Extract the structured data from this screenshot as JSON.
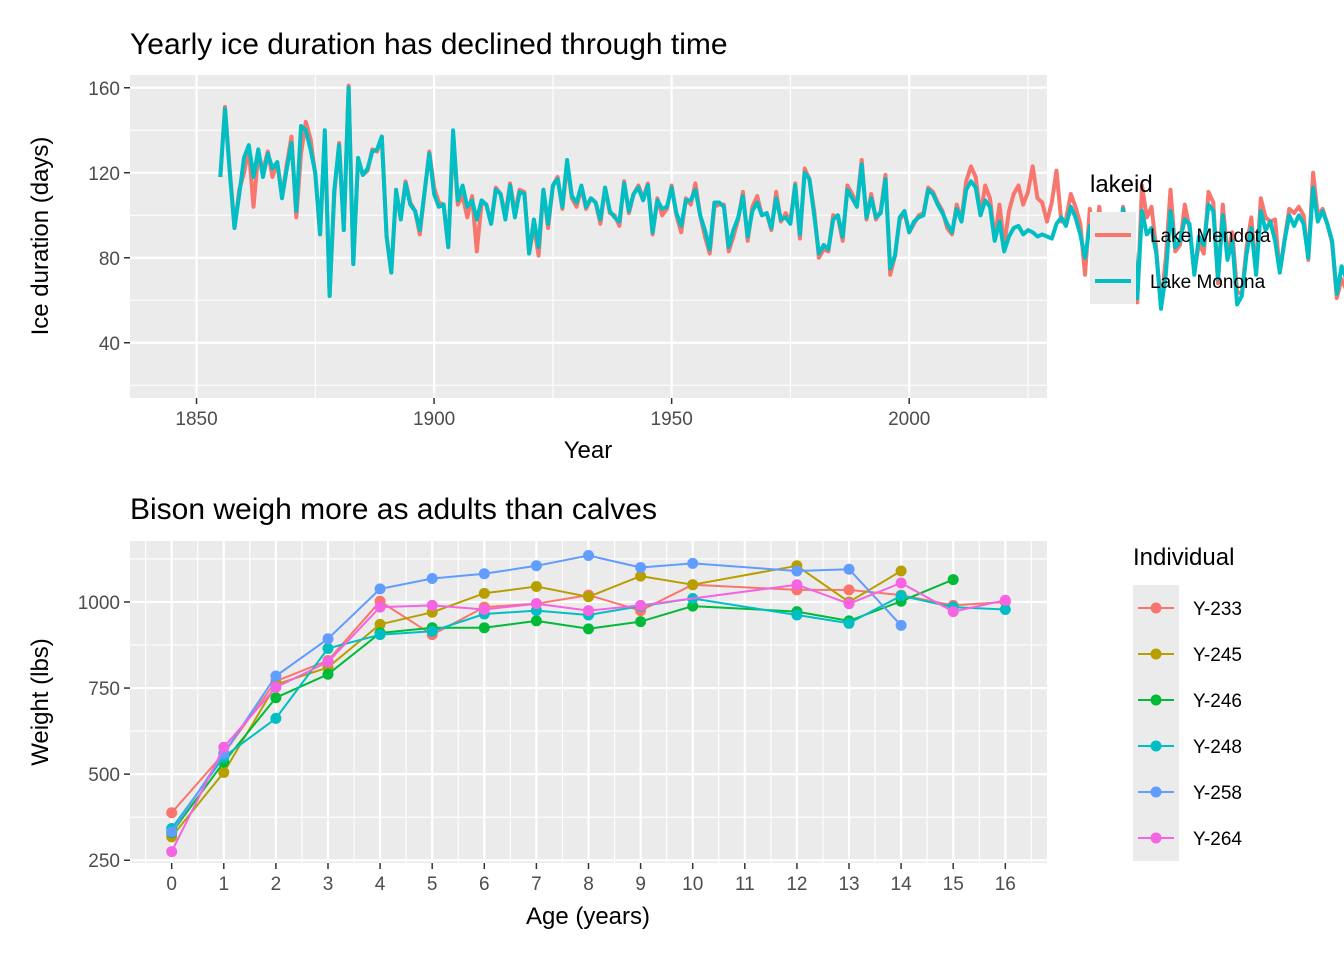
{
  "chart_data": [
    {
      "type": "line",
      "title": "Yearly ice duration has declined through time",
      "xlabel": "Year",
      "ylabel": "Ice duration (days)",
      "xlim": [
        1836,
        2029
      ],
      "ylim": [
        14,
        166
      ],
      "xticks": [
        1850,
        1900,
        1950,
        2000
      ],
      "yticks": [
        40,
        80,
        120,
        160
      ],
      "grid": true,
      "legend": {
        "title": "lakeid",
        "position": "right"
      },
      "series": [
        {
          "name": "Lake Mendota",
          "color": "#F8766D",
          "x_start": 1855,
          "values": [
            118,
            151,
            121,
            94,
            112,
            120,
            131,
            104,
            129,
            121,
            130,
            118,
            125,
            109,
            124,
            137,
            99,
            129,
            144,
            136,
            119,
            91,
            137,
            62,
            110,
            134,
            93,
            161,
            77,
            126,
            119,
            121,
            131,
            130,
            137,
            90,
            73,
            110,
            99,
            116,
            106,
            102,
            91,
            111,
            130,
            113,
            106,
            105,
            85,
            136,
            105,
            109,
            99,
            109,
            83,
            106,
            105,
            96,
            113,
            110,
            100,
            115,
            101,
            112,
            111,
            82,
            95,
            81,
            112,
            94,
            114,
            118,
            103,
            124,
            108,
            104,
            113,
            103,
            108,
            106,
            96,
            113,
            101,
            100,
            95,
            116,
            101,
            110,
            114,
            108,
            115,
            91,
            108,
            100,
            103,
            114,
            100,
            92,
            108,
            105,
            115,
            100,
            90,
            82,
            104,
            105,
            105,
            83,
            90,
            98,
            111,
            88,
            104,
            109,
            100,
            101,
            93,
            111,
            97,
            101,
            97,
            115,
            89,
            122,
            117,
            102,
            80,
            84,
            83,
            100,
            99,
            88,
            114,
            110,
            105,
            126,
            98,
            110,
            98,
            102,
            119,
            72,
            81,
            98,
            101,
            92,
            96,
            100,
            101,
            113,
            111,
            106,
            102,
            94,
            91,
            105,
            98,
            116,
            123,
            118,
            100,
            114,
            108,
            89,
            105,
            86,
            102,
            110,
            114,
            105,
            111,
            123,
            108,
            106,
            97,
            106,
            121,
            97,
            98,
            110,
            104,
            96,
            72,
            103,
            87,
            104,
            80,
            61,
            63,
            74,
            104,
            91,
            93,
            59,
            114,
            99,
            104,
            84,
            57,
            80,
            112,
            83,
            86,
            105,
            94,
            73,
            87,
            82,
            111,
            106,
            68,
            105,
            81,
            92,
            64,
            63,
            85,
            99,
            73,
            108,
            99,
            97,
            98,
            73,
            89,
            103,
            101,
            104,
            100,
            79,
            120,
            100,
            103,
            96,
            87,
            61,
            70,
            65,
            82,
            99,
            100,
            71,
            64,
            69,
            88,
            58,
            82,
            74,
            71,
            91,
            63,
            106,
            79
          ]
        },
        {
          "name": "Lake Monona",
          "color": "#00BFC4",
          "x_start": 1855,
          "values": [
            118,
            150,
            120,
            94,
            110,
            127,
            133,
            118,
            131,
            118,
            129,
            122,
            125,
            108,
            122,
            134,
            102,
            142,
            140,
            131,
            120,
            91,
            140,
            62,
            112,
            133,
            93,
            160,
            77,
            127,
            119,
            122,
            130,
            131,
            137,
            90,
            73,
            112,
            98,
            115,
            105,
            102,
            93,
            111,
            129,
            110,
            104,
            105,
            85,
            140,
            107,
            114,
            104,
            107,
            98,
            107,
            105,
            96,
            112,
            110,
            98,
            114,
            99,
            111,
            110,
            82,
            98,
            85,
            112,
            96,
            114,
            117,
            104,
            126,
            109,
            106,
            114,
            104,
            108,
            106,
            98,
            113,
            102,
            99,
            97,
            115,
            102,
            110,
            113,
            107,
            114,
            92,
            107,
            103,
            104,
            113,
            101,
            95,
            107,
            107,
            112,
            100,
            93,
            84,
            106,
            106,
            104,
            85,
            93,
            99,
            109,
            90,
            102,
            106,
            100,
            101,
            94,
            108,
            98,
            99,
            96,
            114,
            91,
            120,
            117,
            100,
            82,
            86,
            84,
            98,
            100,
            90,
            112,
            108,
            104,
            124,
            99,
            108,
            99,
            101,
            117,
            75,
            81,
            99,
            102,
            92,
            97,
            99,
            100,
            112,
            110,
            105,
            101,
            96,
            92,
            103,
            97,
            112,
            116,
            113,
            100,
            107,
            104,
            88,
            97,
            83,
            90,
            94,
            95,
            91,
            93,
            92,
            90,
            91,
            90,
            89,
            96,
            99,
            95,
            104,
            99,
            91,
            80,
            95,
            86,
            98,
            80,
            63,
            65,
            77,
            103,
            89,
            94,
            61,
            102,
            91,
            94,
            82,
            56,
            72,
            102,
            85,
            88,
            98,
            96,
            72,
            90,
            86,
            105,
            102,
            70,
            100,
            79,
            88,
            58,
            62,
            82,
            94,
            72,
            102,
            93,
            97,
            88,
            73,
            88,
            100,
            95,
            100,
            96,
            80,
            113,
            97,
            102,
            96,
            88,
            63,
            76,
            70,
            84,
            98,
            99,
            73,
            67,
            72,
            89,
            60,
            85,
            79,
            75,
            90,
            67,
            102,
            80
          ]
        }
      ]
    },
    {
      "type": "line",
      "title": "Bison weigh more as adults than calves",
      "xlabel": "Age (years)",
      "ylabel": "Weight (lbs)",
      "xlim": [
        -0.8,
        16.8
      ],
      "ylim": [
        242,
        1177
      ],
      "xticks": [
        0,
        1,
        2,
        3,
        4,
        5,
        6,
        7,
        8,
        9,
        10,
        11,
        12,
        13,
        14,
        15,
        16
      ],
      "yticks": [
        250,
        500,
        750,
        1000
      ],
      "grid": true,
      "markers": true,
      "legend": {
        "title": "Individual",
        "position": "right"
      },
      "series": [
        {
          "name": "Y-233",
          "color": "#F8766D",
          "x": [
            0,
            1,
            2,
            3,
            4,
            5,
            6,
            7,
            8,
            9,
            10,
            12,
            13,
            14,
            15,
            16
          ],
          "values": [
            388,
            560,
            770,
            830,
            1002,
            905,
            985,
            995,
            1020,
            975,
            1050,
            1035,
            1035,
            1020,
            990,
            1000
          ]
        },
        {
          "name": "Y-245",
          "color": "#B79F00",
          "x": [
            0,
            1,
            2,
            3,
            4,
            5,
            6,
            7,
            8,
            9,
            10,
            12,
            13,
            14
          ],
          "values": [
            318,
            505,
            760,
            810,
            935,
            970,
            1025,
            1045,
            1015,
            1075,
            1050,
            1105,
            1000,
            1090
          ]
        },
        {
          "name": "Y-246",
          "color": "#00BA38",
          "x": [
            0,
            1,
            2,
            3,
            4,
            5,
            6,
            7,
            8,
            9,
            10,
            12,
            13,
            14,
            15
          ],
          "values": [
            330,
            535,
            722,
            790,
            910,
            925,
            925,
            945,
            922,
            943,
            988,
            972,
            945,
            1002,
            1065
          ]
        },
        {
          "name": "Y-248",
          "color": "#00BFC4",
          "x": [
            0,
            1,
            2,
            3,
            4,
            5,
            6,
            7,
            8,
            9,
            10,
            12,
            13,
            14,
            15,
            16
          ],
          "values": [
            342,
            550,
            662,
            865,
            905,
            915,
            965,
            975,
            962,
            988,
            1010,
            962,
            938,
            1018,
            985,
            978
          ]
        },
        {
          "name": "Y-258",
          "color": "#619CFF",
          "x": [
            0,
            1,
            2,
            3,
            4,
            5,
            6,
            7,
            8,
            9,
            10,
            12,
            13,
            14
          ],
          "values": [
            332,
            560,
            785,
            893,
            1038,
            1068,
            1082,
            1105,
            1135,
            1100,
            1112,
            1090,
            1095,
            932
          ]
        },
        {
          "name": "Y-264",
          "color": "#F564E3",
          "x": [
            0,
            1,
            2,
            3,
            4,
            5,
            6,
            7,
            8,
            9,
            12,
            13,
            14,
            15,
            16
          ],
          "values": [
            275,
            578,
            752,
            826,
            985,
            990,
            978,
            995,
            975,
            990,
            1050,
            995,
            1055,
            972,
            1005
          ]
        }
      ]
    }
  ]
}
